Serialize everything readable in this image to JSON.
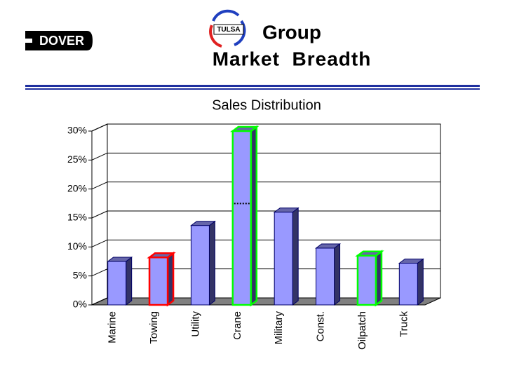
{
  "header": {
    "logo": "DOVER",
    "badge": "TULSA",
    "title_line1": "Group",
    "title_line2": "Market  Breadth"
  },
  "chart_data": {
    "type": "bar3d",
    "title": "Sales Distribution",
    "categories": [
      "Marine",
      "Towing",
      "Utility",
      "Crane",
      "Military",
      "Const.",
      "Oilpatch",
      "Truck"
    ],
    "values": [
      7.5,
      8.2,
      13.7,
      30,
      16,
      9.8,
      8.5,
      7.2
    ],
    "color": "#9999ff",
    "outline_colors": [
      "#000066",
      "#ff0000",
      "#000066",
      "#00ff00",
      "#000066",
      "#000066",
      "#00ff00",
      "#000066"
    ],
    "markers": [
      {
        "index": 3,
        "value": 17.5
      }
    ],
    "ylim": [
      0,
      30
    ],
    "yticks": [
      {
        "value": 0,
        "label": "0%"
      },
      {
        "value": 5,
        "label": "5%"
      },
      {
        "value": 10,
        "label": "10%"
      },
      {
        "value": 15,
        "label": "15%"
      },
      {
        "value": 20,
        "label": "20%"
      },
      {
        "value": 25,
        "label": "25%"
      },
      {
        "value": 30,
        "label": "30%"
      }
    ],
    "grid": true
  }
}
